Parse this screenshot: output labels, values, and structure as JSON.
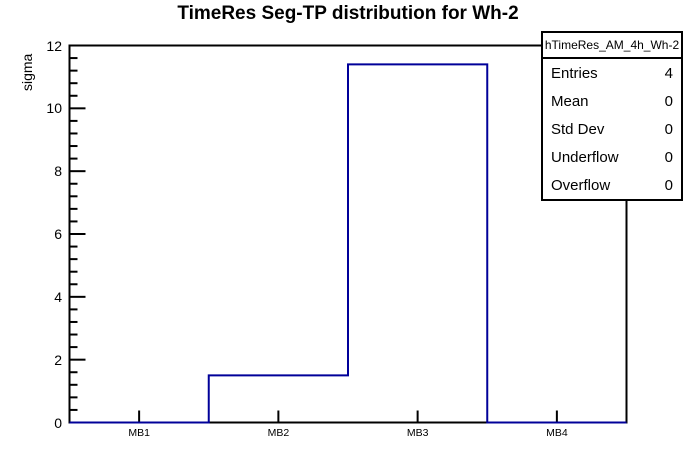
{
  "title": "TimeRes Seg-TP distribution for Wh-2",
  "y_axis": {
    "label": "sigma",
    "min": 0,
    "max": 12,
    "major_step": 2,
    "minor_per_major": 5,
    "ticks": [
      "0",
      "2",
      "4",
      "6",
      "8",
      "10",
      "12"
    ]
  },
  "x_axis": {
    "categories": [
      "MB1",
      "MB2",
      "MB3",
      "MB4"
    ]
  },
  "stats_box": {
    "header": "hTimeRes_AM_4h_Wh-2",
    "rows": [
      {
        "label": "Entries",
        "value": "4"
      },
      {
        "label": "Mean",
        "value": "0"
      },
      {
        "label": "Std Dev",
        "value": "0"
      },
      {
        "label": "Underflow",
        "value": "0"
      },
      {
        "label": "Overflow",
        "value": "0"
      }
    ]
  },
  "colors": {
    "histogram_line": "#000099",
    "frame_line": "#000000",
    "background": "#ffffff",
    "text": "#000000"
  },
  "chart_data": {
    "type": "bar",
    "subtype": "step-histogram-outline",
    "categories": [
      "MB1",
      "MB2",
      "MB3",
      "MB4"
    ],
    "values": [
      0,
      1.5,
      11.4,
      0
    ],
    "title": "TimeRes Seg-TP distribution for Wh-2",
    "xlabel": "",
    "ylabel": "sigma",
    "ylim": [
      0,
      12
    ],
    "y_major_tick_step": 2,
    "y_minor_divisions_per_major": 5,
    "grid": false,
    "legend_position": "none",
    "stats_legend": {
      "position": "top-right",
      "header": "hTimeRes_AM_4h_Wh-2",
      "entries": 4,
      "mean": 0,
      "std_dev": 0,
      "underflow": 0,
      "overflow": 0
    }
  }
}
